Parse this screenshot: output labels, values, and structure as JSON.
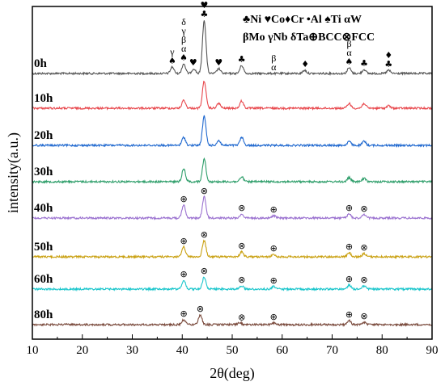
{
  "chart_data": {
    "type": "line",
    "xlabel": "2θ(deg)",
    "ylabel": "intensity(a.u.)",
    "xlim": [
      10,
      90
    ],
    "xticks": [
      "10",
      "20",
      "30",
      "40",
      "50",
      "60",
      "70",
      "80",
      "90"
    ],
    "legend": {
      "line1": "♣Ni ♥Co♦Cr •Al ♠Ti αW",
      "line2": "βMo γNb δTa⊕BCC⊗FCC"
    },
    "series": [
      {
        "name": "0h",
        "color": "#555555",
        "peaks": [
          {
            "x": 38.0,
            "h": 8
          },
          {
            "x": 40.3,
            "h": 12
          },
          {
            "x": 42.3,
            "h": 6
          },
          {
            "x": 44.4,
            "h": 66
          },
          {
            "x": 47.3,
            "h": 6
          },
          {
            "x": 51.9,
            "h": 10
          },
          {
            "x": 64.5,
            "h": 4
          },
          {
            "x": 73.4,
            "h": 7
          },
          {
            "x": 76.4,
            "h": 5
          },
          {
            "x": 81.3,
            "h": 4
          }
        ]
      },
      {
        "name": "10h",
        "color": "#e8474c",
        "peaks": [
          {
            "x": 40.3,
            "h": 10
          },
          {
            "x": 44.4,
            "h": 34
          },
          {
            "x": 47.3,
            "h": 6
          },
          {
            "x": 51.9,
            "h": 9
          },
          {
            "x": 73.4,
            "h": 6
          },
          {
            "x": 76.4,
            "h": 6
          },
          {
            "x": 81.3,
            "h": 3
          }
        ]
      },
      {
        "name": "20h",
        "color": "#1f68cf",
        "peaks": [
          {
            "x": 40.3,
            "h": 10
          },
          {
            "x": 44.4,
            "h": 36
          },
          {
            "x": 47.3,
            "h": 6
          },
          {
            "x": 51.9,
            "h": 10
          },
          {
            "x": 73.4,
            "h": 5
          },
          {
            "x": 76.4,
            "h": 5
          }
        ]
      },
      {
        "name": "30h",
        "color": "#2e9e6a",
        "peaks": [
          {
            "x": 40.3,
            "h": 16
          },
          {
            "x": 44.4,
            "h": 28
          },
          {
            "x": 51.9,
            "h": 6
          },
          {
            "x": 73.4,
            "h": 5
          },
          {
            "x": 76.4,
            "h": 4
          }
        ]
      },
      {
        "name": "40h",
        "color": "#9b72d0",
        "peaks": [
          {
            "x": 40.3,
            "h": 16
          },
          {
            "x": 44.4,
            "h": 26
          },
          {
            "x": 51.9,
            "h": 5
          },
          {
            "x": 58.3,
            "h": 3
          },
          {
            "x": 73.4,
            "h": 5
          },
          {
            "x": 76.4,
            "h": 4
          }
        ]
      },
      {
        "name": "50h",
        "color": "#c9a010",
        "peaks": [
          {
            "x": 40.3,
            "h": 12
          },
          {
            "x": 44.4,
            "h": 20
          },
          {
            "x": 51.9,
            "h": 6
          },
          {
            "x": 58.3,
            "h": 3
          },
          {
            "x": 73.4,
            "h": 5
          },
          {
            "x": 76.4,
            "h": 4
          }
        ]
      },
      {
        "name": "60h",
        "color": "#1bc6cc",
        "peaks": [
          {
            "x": 40.3,
            "h": 11
          },
          {
            "x": 44.4,
            "h": 15
          },
          {
            "x": 51.9,
            "h": 4
          },
          {
            "x": 58.3,
            "h": 3
          },
          {
            "x": 73.4,
            "h": 5
          },
          {
            "x": 76.4,
            "h": 4
          }
        ]
      },
      {
        "name": "80h",
        "color": "#7a4a3c",
        "peaks": [
          {
            "x": 40.3,
            "h": 6
          },
          {
            "x": 43.6,
            "h": 12
          },
          {
            "x": 51.5,
            "h": 3
          },
          {
            "x": 58.3,
            "h": 2
          },
          {
            "x": 73.4,
            "h": 5
          },
          {
            "x": 76.4,
            "h": 3
          }
        ]
      }
    ],
    "annotations": [
      {
        "series": "0h",
        "x": 38.0,
        "text": [
          "γ",
          "♠"
        ]
      },
      {
        "series": "0h",
        "x": 40.3,
        "text": [
          "δ",
          "γ",
          "β",
          "α",
          "♠"
        ]
      },
      {
        "series": "0h",
        "x": 42.2,
        "text": [
          "♥"
        ]
      },
      {
        "series": "0h",
        "x": 44.4,
        "text": [
          "♦",
          "♥",
          "♣"
        ]
      },
      {
        "series": "0h",
        "x": 47.3,
        "text": [
          "♥"
        ]
      },
      {
        "series": "0h",
        "x": 51.9,
        "text": [
          "♣"
        ]
      },
      {
        "series": "0h",
        "x": 58.3,
        "text": [
          "β",
          "α"
        ]
      },
      {
        "series": "0h",
        "x": 64.6,
        "text": [
          "♦"
        ]
      },
      {
        "series": "0h",
        "x": 73.4,
        "text": [
          "β",
          "α",
          "♠"
        ]
      },
      {
        "series": "0h",
        "x": 76.4,
        "text": [
          "♣"
        ]
      },
      {
        "series": "0h",
        "x": 81.3,
        "text": [
          "♦",
          "♣"
        ]
      },
      {
        "series": "40h",
        "x": 40.3,
        "text": [
          "⊕"
        ]
      },
      {
        "series": "40h",
        "x": 44.4,
        "text": [
          "⊗"
        ]
      },
      {
        "series": "40h",
        "x": 51.9,
        "text": [
          "⊗"
        ]
      },
      {
        "series": "40h",
        "x": 58.3,
        "text": [
          "⊕"
        ]
      },
      {
        "series": "40h",
        "x": 73.4,
        "text": [
          "⊕"
        ]
      },
      {
        "series": "40h",
        "x": 76.4,
        "text": [
          "⊗"
        ]
      },
      {
        "series": "50h",
        "x": 40.3,
        "text": [
          "⊕"
        ]
      },
      {
        "series": "50h",
        "x": 44.4,
        "text": [
          "⊗"
        ]
      },
      {
        "series": "50h",
        "x": 51.9,
        "text": [
          "⊗"
        ]
      },
      {
        "series": "50h",
        "x": 58.3,
        "text": [
          "⊕"
        ]
      },
      {
        "series": "50h",
        "x": 73.4,
        "text": [
          "⊕"
        ]
      },
      {
        "series": "50h",
        "x": 76.4,
        "text": [
          "⊗"
        ]
      },
      {
        "series": "60h",
        "x": 40.3,
        "text": [
          "⊕"
        ]
      },
      {
        "series": "60h",
        "x": 44.4,
        "text": [
          "⊗"
        ]
      },
      {
        "series": "60h",
        "x": 51.9,
        "text": [
          "⊗"
        ]
      },
      {
        "series": "60h",
        "x": 58.3,
        "text": [
          "⊕"
        ]
      },
      {
        "series": "60h",
        "x": 73.4,
        "text": [
          "⊕"
        ]
      },
      {
        "series": "60h",
        "x": 76.4,
        "text": [
          "⊗"
        ]
      },
      {
        "series": "80h",
        "x": 40.3,
        "text": [
          "⊕"
        ]
      },
      {
        "series": "80h",
        "x": 43.6,
        "text": [
          "⊗"
        ]
      },
      {
        "series": "80h",
        "x": 51.9,
        "text": [
          "⊗"
        ]
      },
      {
        "series": "80h",
        "x": 58.3,
        "text": [
          "⊕"
        ]
      },
      {
        "series": "80h",
        "x": 73.4,
        "text": [
          "⊕"
        ]
      },
      {
        "series": "80h",
        "x": 76.4,
        "text": [
          "⊗"
        ]
      }
    ]
  }
}
